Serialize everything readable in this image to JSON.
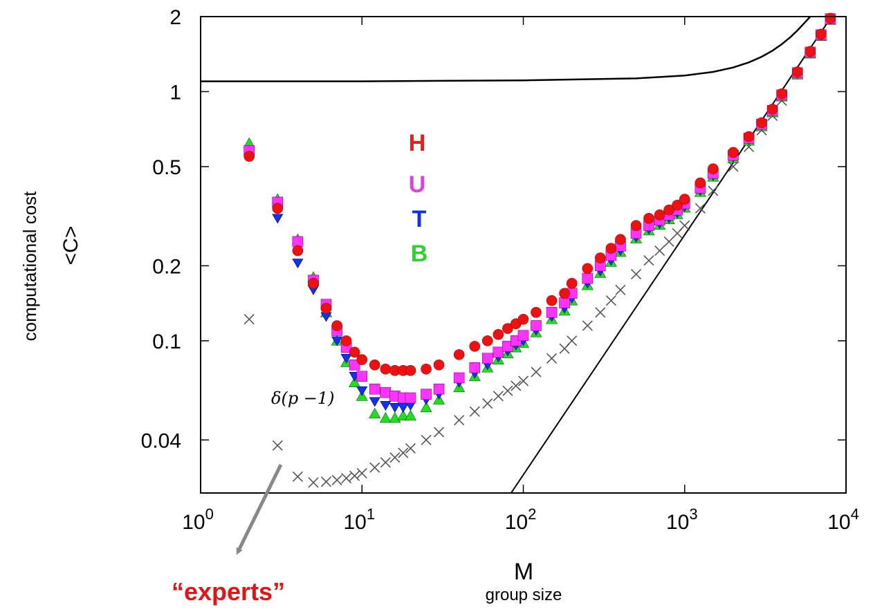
{
  "chart_data": {
    "type": "scatter",
    "xlabel": "M",
    "xlabel_sub": "group size",
    "ylabel_line1": "computational cost",
    "ylabel_line2": "<C>",
    "x_scale": "log",
    "y_scale": "log",
    "xlim": [
      1,
      10000
    ],
    "ylim": [
      0.0245,
      2.0
    ],
    "x_ticks": [
      {
        "value": 1,
        "base": "10",
        "exp": "0"
      },
      {
        "value": 10,
        "base": "10",
        "exp": "1"
      },
      {
        "value": 100,
        "base": "10",
        "exp": "2"
      },
      {
        "value": 1000,
        "base": "10",
        "exp": "3"
      },
      {
        "value": 10000,
        "base": "10",
        "exp": "4"
      }
    ],
    "y_ticks": [
      {
        "value": 2,
        "label": "2"
      },
      {
        "value": 1,
        "label": "1"
      },
      {
        "value": 0.5,
        "label": "0.5"
      },
      {
        "value": 0.2,
        "label": "0.2"
      },
      {
        "value": 0.1,
        "label": "0.1"
      },
      {
        "value": 0.04,
        "label": "0.04"
      }
    ],
    "legend": [
      {
        "label": "H",
        "color": "#e8201a"
      },
      {
        "label": "U",
        "color": "#e040e0"
      },
      {
        "label": "T",
        "color": "#1030e0"
      },
      {
        "label": "B",
        "color": "#30d030"
      }
    ],
    "series": [
      {
        "name": "H",
        "marker": "circle",
        "color": "#ee1111",
        "x": [
          2,
          3,
          4,
          5,
          6,
          7,
          8,
          9,
          10,
          12,
          14,
          16,
          18,
          20,
          25,
          30,
          40,
          50,
          60,
          70,
          80,
          90,
          100,
          120,
          150,
          180,
          200,
          250,
          300,
          350,
          400,
          500,
          600,
          700,
          800,
          900,
          1000,
          1250,
          1500,
          2000,
          2500,
          3000,
          3500,
          4000,
          5000,
          6000,
          7000,
          8000
        ],
        "y": [
          0.55,
          0.34,
          0.23,
          0.17,
          0.135,
          0.115,
          0.1,
          0.09,
          0.084,
          0.08,
          0.077,
          0.076,
          0.076,
          0.076,
          0.077,
          0.08,
          0.088,
          0.095,
          0.1,
          0.106,
          0.112,
          0.117,
          0.122,
          0.13,
          0.145,
          0.155,
          0.17,
          0.195,
          0.215,
          0.235,
          0.255,
          0.29,
          0.31,
          0.32,
          0.335,
          0.35,
          0.37,
          0.43,
          0.49,
          0.57,
          0.66,
          0.75,
          0.85,
          0.98,
          1.2,
          1.45,
          1.7,
          1.97
        ]
      },
      {
        "name": "U",
        "marker": "square",
        "color": "#ff33ff",
        "x": [
          2,
          3,
          4,
          5,
          6,
          7,
          8,
          9,
          10,
          12,
          14,
          16,
          18,
          20,
          25,
          30,
          40,
          50,
          60,
          70,
          80,
          90,
          100,
          120,
          150,
          180,
          200,
          250,
          300,
          350,
          400,
          500,
          600,
          700,
          800,
          900,
          1000,
          1250,
          1500,
          2000,
          2500,
          3000,
          3500,
          4000,
          5000,
          6000,
          7000,
          8000
        ],
        "y": [
          0.58,
          0.36,
          0.25,
          0.175,
          0.14,
          0.11,
          0.094,
          0.08,
          0.072,
          0.064,
          0.062,
          0.06,
          0.059,
          0.059,
          0.061,
          0.064,
          0.071,
          0.078,
          0.085,
          0.09,
          0.095,
          0.1,
          0.105,
          0.115,
          0.13,
          0.142,
          0.155,
          0.178,
          0.2,
          0.22,
          0.24,
          0.27,
          0.29,
          0.305,
          0.32,
          0.335,
          0.355,
          0.41,
          0.47,
          0.555,
          0.65,
          0.74,
          0.84,
          0.97,
          1.19,
          1.44,
          1.69,
          1.96
        ]
      },
      {
        "name": "T",
        "marker": "triangle-down",
        "color": "#1133ee",
        "x": [
          2,
          3,
          4,
          5,
          6,
          7,
          8,
          9,
          10,
          12,
          14,
          16,
          18,
          20,
          25,
          30,
          40,
          50,
          60,
          70,
          80,
          90,
          100,
          120,
          150,
          180,
          200,
          250,
          300,
          350,
          400,
          500,
          600,
          700,
          800,
          900,
          1000,
          1250,
          1500,
          2000,
          2500,
          3000,
          3500,
          4000,
          5000,
          6000,
          7000,
          8000
        ],
        "y": [
          0.56,
          0.31,
          0.205,
          0.16,
          0.125,
          0.1,
          0.085,
          0.072,
          0.063,
          0.057,
          0.055,
          0.054,
          0.054,
          0.055,
          0.058,
          0.061,
          0.068,
          0.074,
          0.08,
          0.086,
          0.091,
          0.096,
          0.1,
          0.11,
          0.125,
          0.135,
          0.148,
          0.17,
          0.19,
          0.21,
          0.23,
          0.26,
          0.28,
          0.295,
          0.31,
          0.325,
          0.345,
          0.4,
          0.46,
          0.545,
          0.64,
          0.73,
          0.83,
          0.96,
          1.18,
          1.43,
          1.68,
          1.95
        ]
      },
      {
        "name": "B",
        "marker": "triangle-up",
        "color": "#22dd22",
        "x": [
          2,
          3,
          4,
          5,
          6,
          7,
          8,
          9,
          10,
          12,
          14,
          16,
          18,
          20,
          25,
          30,
          40,
          50,
          60,
          70,
          80,
          90,
          100,
          120,
          150,
          180,
          200,
          250,
          300,
          350,
          400,
          500,
          600,
          700,
          800,
          900,
          1000,
          1250,
          1500,
          2000,
          2500,
          3000,
          3500,
          4000,
          5000,
          6000,
          7000,
          8000
        ],
        "y": [
          0.62,
          0.37,
          0.255,
          0.18,
          0.13,
          0.1,
          0.082,
          0.068,
          0.06,
          0.051,
          0.049,
          0.049,
          0.05,
          0.05,
          0.054,
          0.058,
          0.065,
          0.072,
          0.078,
          0.084,
          0.089,
          0.094,
          0.098,
          0.108,
          0.122,
          0.132,
          0.145,
          0.167,
          0.187,
          0.207,
          0.227,
          0.257,
          0.277,
          0.292,
          0.307,
          0.322,
          0.342,
          0.395,
          0.455,
          0.54,
          0.635,
          0.725,
          0.825,
          0.955,
          1.17,
          1.42,
          1.67,
          1.94
        ]
      },
      {
        "name": "δ(p − 1)",
        "marker": "cross",
        "color": "#555555",
        "x": [
          2,
          3,
          4,
          5,
          6,
          7,
          8,
          9,
          10,
          12,
          14,
          16,
          18,
          20,
          25,
          30,
          40,
          50,
          60,
          70,
          80,
          90,
          100,
          120,
          150,
          180,
          200,
          250,
          300,
          350,
          400,
          500,
          600,
          700,
          800,
          900,
          1000,
          1250,
          1500,
          2000,
          2500,
          3000,
          3500,
          4000
        ],
        "y": [
          0.122,
          0.038,
          0.0285,
          0.027,
          0.0272,
          0.0276,
          0.0281,
          0.0287,
          0.0294,
          0.031,
          0.0325,
          0.034,
          0.0355,
          0.037,
          0.04,
          0.043,
          0.048,
          0.052,
          0.056,
          0.06,
          0.063,
          0.066,
          0.069,
          0.075,
          0.085,
          0.093,
          0.1,
          0.115,
          0.13,
          0.145,
          0.16,
          0.185,
          0.21,
          0.23,
          0.25,
          0.27,
          0.29,
          0.34,
          0.4,
          0.5,
          0.6,
          0.7,
          0.8,
          0.92
        ]
      }
    ],
    "lines": [
      {
        "name": "curve",
        "x": [
          1,
          10,
          100,
          500,
          1000,
          1500,
          2000,
          2500,
          3000,
          3500,
          4000,
          4500,
          5000,
          5500,
          6000
        ],
        "y": [
          1.1,
          1.1,
          1.11,
          1.13,
          1.16,
          1.2,
          1.25,
          1.31,
          1.38,
          1.46,
          1.55,
          1.65,
          1.76,
          1.88,
          2.0
        ]
      },
      {
        "name": "linear",
        "x": [
          84,
          8000
        ],
        "y": [
          0.0245,
          1.97
        ]
      }
    ],
    "annotation_label": "δ(p −1)",
    "annotation_text": "“experts”"
  }
}
